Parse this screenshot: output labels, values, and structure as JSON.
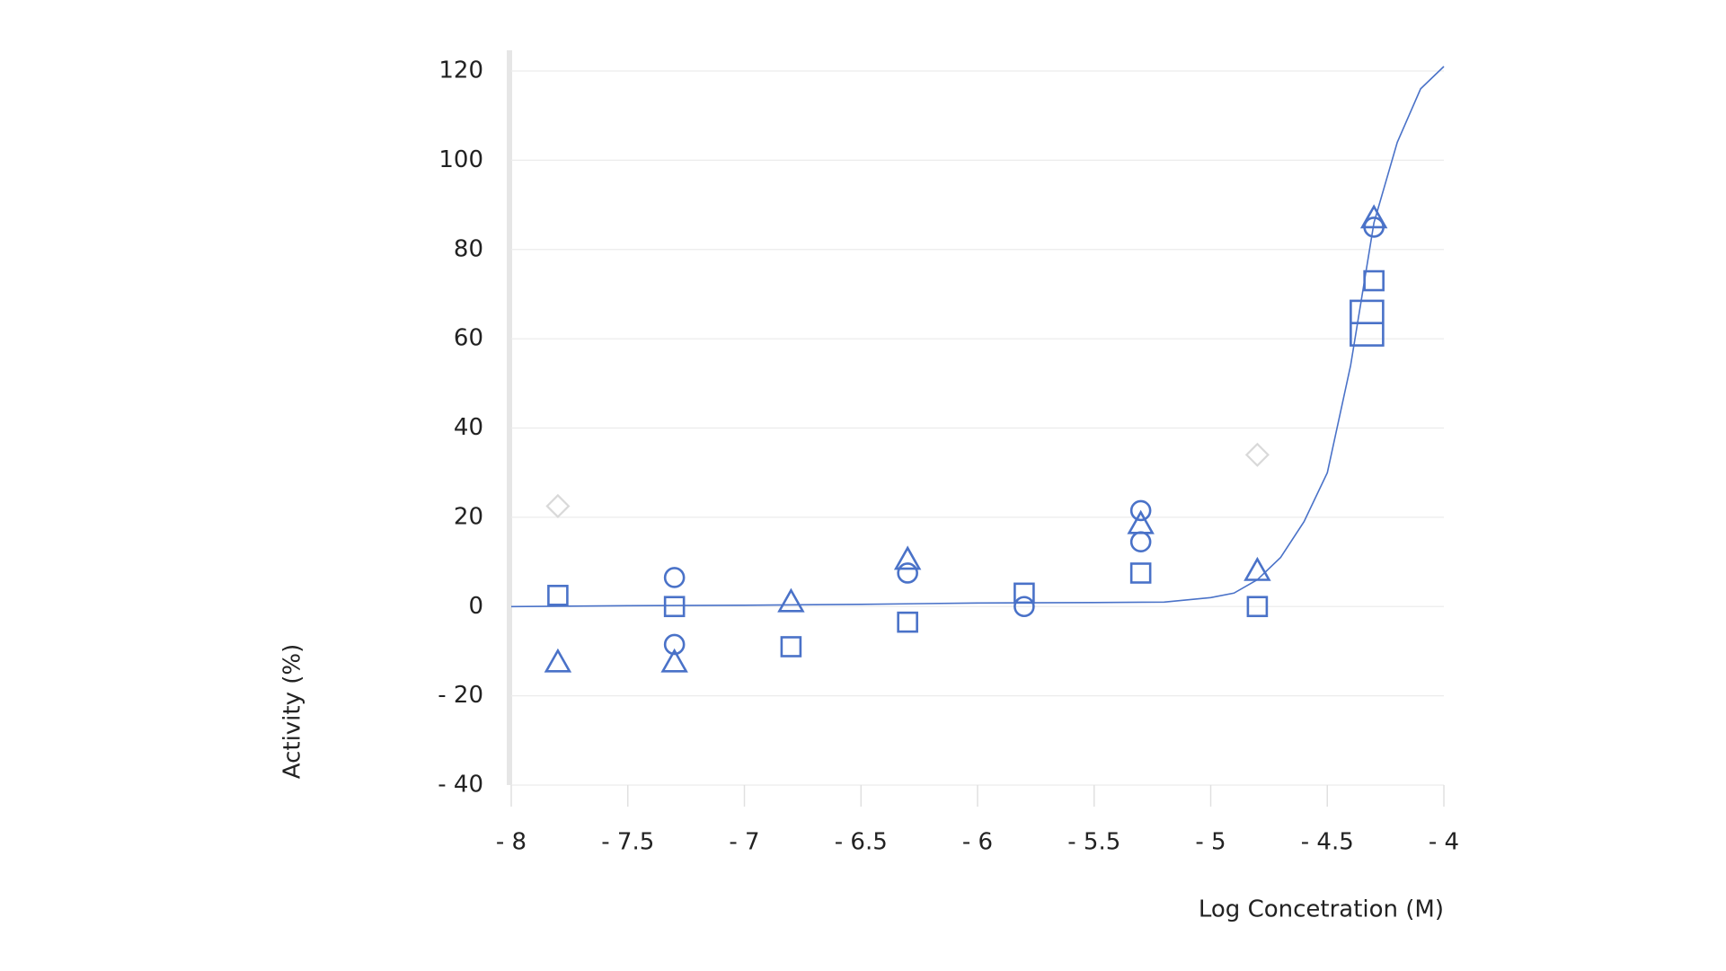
{
  "chart_data": {
    "type": "scatter",
    "x_label": "Log Concetration (M)",
    "y_label": "Activity (%)",
    "xlim": [
      -8,
      -4
    ],
    "ylim": [
      -40,
      120
    ],
    "xticks": [
      {
        "value": -8,
        "label": "- 8"
      },
      {
        "value": -7.5,
        "label": "- 7.5"
      },
      {
        "value": -7,
        "label": "- 7"
      },
      {
        "value": -6.5,
        "label": "- 6.5"
      },
      {
        "value": -6,
        "label": "- 6"
      },
      {
        "value": -5.5,
        "label": "- 5.5"
      },
      {
        "value": -5,
        "label": "- 5"
      },
      {
        "value": -4.5,
        "label": "- 4.5"
      },
      {
        "value": -4,
        "label": "- 4"
      }
    ],
    "yticks": [
      {
        "value": -40,
        "label": "- 40"
      },
      {
        "value": -20,
        "label": "- 20"
      },
      0,
      20,
      40,
      60,
      80,
      100,
      120
    ],
    "grid": true,
    "series": [
      {
        "marker": "circle",
        "color": "#4a72c8",
        "x": [
          -7.3,
          -7.3,
          -6.3,
          -5.8,
          -5.3,
          -5.3,
          -4.3
        ],
        "values": [
          6.5,
          -8.5,
          7.5,
          0,
          21.5,
          14.5,
          85
        ]
      },
      {
        "marker": "square",
        "color": "#4a72c8",
        "x": [
          -7.8,
          -7.3,
          -6.8,
          -6.3,
          -5.8,
          -5.3,
          -4.8,
          -4.3
        ],
        "values": [
          2.5,
          0,
          -9,
          -3.5,
          3,
          7.5,
          0,
          73
        ]
      },
      {
        "marker": "triangle",
        "color": "#4a72c8",
        "x": [
          -7.8,
          -7.3,
          -6.8,
          -6.3,
          -5.3,
          -4.8,
          -4.3
        ],
        "values": [
          -12.5,
          -12.5,
          1,
          10.5,
          18.5,
          8,
          87
        ]
      },
      {
        "marker": "diamond",
        "color": "#d9d9d9",
        "x": [
          -7.8,
          -4.8
        ],
        "values": [
          22.5,
          34
        ]
      }
    ],
    "error_box": {
      "color": "#4a72c8",
      "x": -4.33,
      "value": 63.5,
      "error": 5
    },
    "curve": {
      "color": "#4a72c8",
      "x": [
        -8,
        -7.5,
        -7,
        -6.5,
        -6,
        -5.5,
        -5.2,
        -5,
        -4.9,
        -4.8,
        -4.7,
        -4.6,
        -4.5,
        -4.4,
        -4.3,
        -4.2,
        -4.1,
        -4
      ],
      "values": [
        0,
        0.2,
        0.3,
        0.5,
        0.8,
        0.9,
        1,
        2,
        3,
        6,
        11,
        19,
        30,
        54,
        86,
        104,
        116,
        121
      ]
    }
  }
}
